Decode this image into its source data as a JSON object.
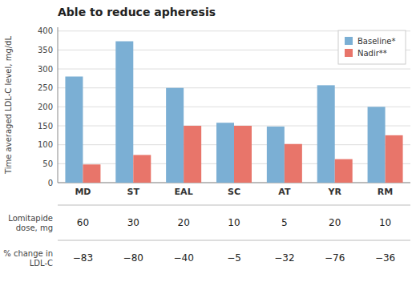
{
  "chart_data": {
    "type": "bar",
    "title": "Able to reduce apheresis",
    "categories": [
      "MD",
      "ST",
      "EAL",
      "SC",
      "AT",
      "YR",
      "RM"
    ],
    "series": [
      {
        "name": "Baseline*",
        "color": "#7BAFD4",
        "values": [
          280,
          373,
          250,
          158,
          148,
          257,
          200
        ]
      },
      {
        "name": "Nadir**",
        "color": "#E8756A",
        "values": [
          48,
          73,
          150,
          150,
          102,
          62,
          125
        ]
      }
    ],
    "y_label": "Time averaged LDL-C level, mg/dL",
    "ylim": [
      0,
      410
    ],
    "yticks": [
      0,
      50,
      100,
      150,
      200,
      250,
      300,
      350,
      400
    ],
    "grid": true,
    "legend": "upper-right",
    "table": [
      {
        "label": "Lomitapide\ndose, mg",
        "values": [
          60,
          30,
          20,
          10,
          5,
          20,
          10
        ]
      },
      {
        "label": "% change in\nLDL-C",
        "values": [
          -83,
          -80,
          -40,
          -5,
          -32,
          -76,
          -36
        ],
        "value_labels": [
          "−83",
          "−80",
          "−40",
          "−5",
          "−32",
          "−76",
          "−36"
        ]
      }
    ]
  }
}
